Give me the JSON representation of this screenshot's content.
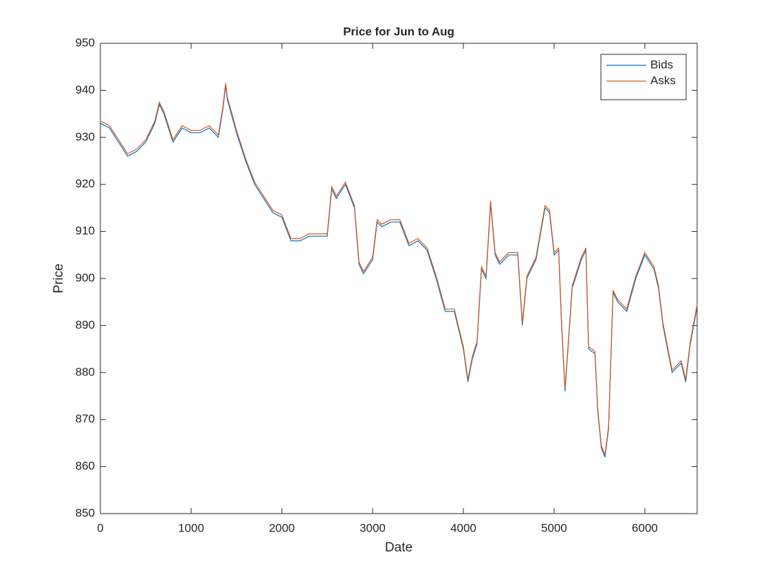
{
  "chart_data": {
    "type": "line",
    "title": "Price for Jun to Aug",
    "x_label": "Date",
    "y_label": "Price",
    "x": [
      0,
      100,
      200,
      300,
      400,
      500,
      600,
      650,
      700,
      800,
      900,
      1000,
      1100,
      1200,
      1300,
      1350,
      1380,
      1400,
      1500,
      1600,
      1700,
      1800,
      1900,
      2000,
      2100,
      2200,
      2300,
      2400,
      2500,
      2550,
      2600,
      2700,
      2800,
      2850,
      2900,
      3000,
      3050,
      3100,
      3200,
      3300,
      3400,
      3500,
      3600,
      3700,
      3800,
      3900,
      4000,
      4050,
      4100,
      4150,
      4200,
      4250,
      4300,
      4350,
      4400,
      4500,
      4600,
      4650,
      4700,
      4800,
      4900,
      4950,
      5000,
      5050,
      5080,
      5120,
      5200,
      5300,
      5350,
      5380,
      5450,
      5480,
      5520,
      5560,
      5600,
      5650,
      5700,
      5800,
      5900,
      6000,
      6100,
      6150,
      6200,
      6300,
      6400,
      6450,
      6500,
      6576
    ],
    "series": [
      {
        "name": "Bids",
        "color": "#0072bd",
        "values": [
          933,
          932,
          929,
          926,
          927,
          929,
          933,
          937,
          935,
          929,
          932,
          931,
          931,
          932,
          930,
          936,
          941,
          938,
          931,
          925,
          920,
          917,
          914,
          913,
          908,
          908,
          909,
          909,
          909,
          919,
          917,
          920,
          915,
          903,
          901,
          904,
          912,
          911,
          912,
          912,
          907,
          908,
          906,
          900,
          893,
          893,
          885,
          878,
          883,
          886,
          902,
          900,
          916,
          905,
          903,
          905,
          905,
          890,
          900,
          904,
          915,
          914,
          905,
          906,
          891,
          876,
          898,
          904,
          906,
          885,
          884,
          872,
          864,
          862,
          868,
          897,
          895,
          893,
          900,
          905,
          902,
          898,
          890,
          880,
          882,
          878,
          886,
          894
        ]
      },
      {
        "name": "Asks",
        "color": "#d95319",
        "values": [
          933.5,
          932.5,
          929.5,
          926.5,
          927.5,
          929.5,
          933.5,
          937.5,
          935.5,
          929.5,
          932.5,
          931.5,
          931.5,
          932.5,
          930.5,
          936.5,
          941.5,
          938.5,
          931.5,
          925.5,
          920.5,
          917.5,
          914.5,
          913.5,
          908.5,
          908.5,
          909.5,
          909.5,
          909.5,
          919.5,
          917.5,
          920.5,
          915.5,
          903.5,
          901.5,
          904.5,
          912.5,
          911.5,
          912.5,
          912.5,
          907.5,
          908.5,
          906.5,
          900.5,
          893.5,
          893.5,
          885.5,
          878.5,
          883.5,
          886.5,
          902.5,
          900.5,
          916.5,
          905.5,
          903.5,
          905.5,
          905.5,
          890.5,
          900.5,
          904.5,
          915.5,
          914.5,
          905.5,
          906.5,
          891.5,
          876.5,
          898.5,
          904.5,
          906.5,
          885.5,
          884.5,
          872.5,
          864.5,
          862.5,
          868.5,
          897.5,
          895.5,
          893.5,
          900.5,
          905.5,
          902.5,
          898.5,
          890.5,
          880.5,
          882.5,
          878.5,
          886.5,
          894.5
        ]
      }
    ],
    "xlim": [
      0,
      6576
    ],
    "xticks": [
      0,
      1000,
      2000,
      3000,
      4000,
      5000,
      6000
    ],
    "ylim": [
      850,
      950
    ],
    "yticks": [
      850,
      860,
      870,
      880,
      890,
      900,
      910,
      920,
      930,
      940,
      950
    ],
    "legend": "upper right"
  }
}
